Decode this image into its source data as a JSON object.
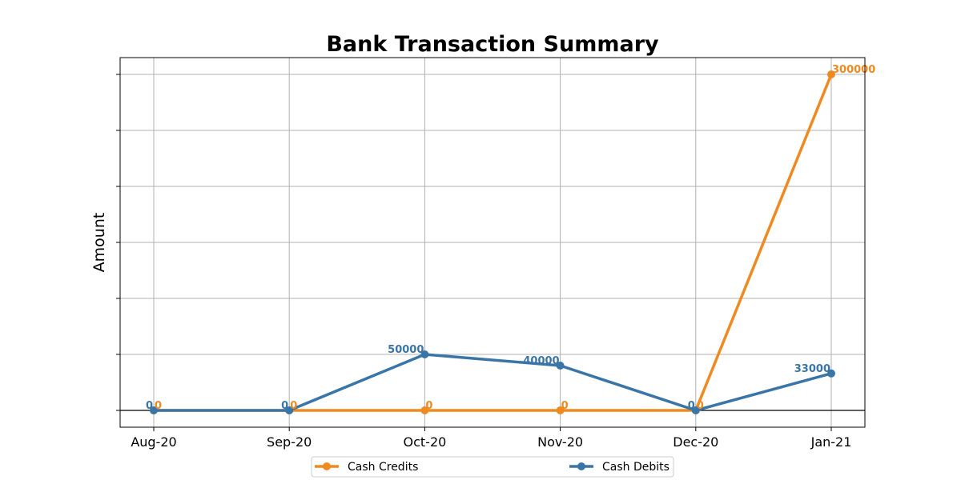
{
  "chart_data": {
    "type": "line",
    "title": "Bank Transaction Summary",
    "xlabel": "",
    "ylabel": "Amount",
    "categories": [
      "Aug-20",
      "Sep-20",
      "Oct-20",
      "Nov-20",
      "Dec-20",
      "Jan-21"
    ],
    "ylim": [
      -15000,
      315000
    ],
    "grid": true,
    "legend_position": "bottom-center",
    "series": [
      {
        "name": "Cash Credits",
        "color": "#ee8a1f",
        "values": [
          0,
          0,
          0,
          0,
          0,
          300000
        ],
        "labels": [
          "0",
          "0",
          "0",
          "0",
          "0",
          "300000"
        ]
      },
      {
        "name": "Cash Debits",
        "color": "#3a75a8",
        "values": [
          0,
          0,
          50000,
          40000,
          0,
          33000
        ],
        "labels": [
          "0",
          "0",
          "50000",
          "40000",
          "0",
          "33000"
        ]
      }
    ]
  }
}
